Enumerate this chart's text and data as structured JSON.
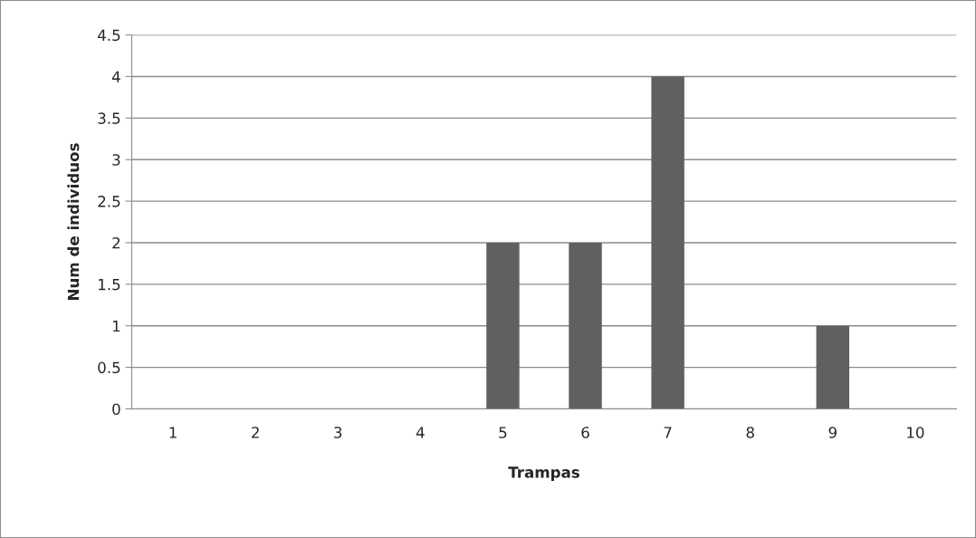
{
  "chart_data": {
    "type": "bar",
    "xlabel": "Trampas",
    "ylabel": "Num de individuos",
    "categories": [
      "1",
      "2",
      "3",
      "4",
      "5",
      "6",
      "7",
      "8",
      "9",
      "10"
    ],
    "values": [
      0,
      0,
      0,
      0,
      2,
      2,
      4,
      0,
      1,
      0
    ],
    "color": "#606060",
    "ylim": [
      0,
      4.5
    ],
    "yticks": [
      0,
      0.5,
      1,
      1.5,
      2,
      2.5,
      3,
      3.5,
      4,
      4.5
    ],
    "grid": "y",
    "legend": false
  }
}
